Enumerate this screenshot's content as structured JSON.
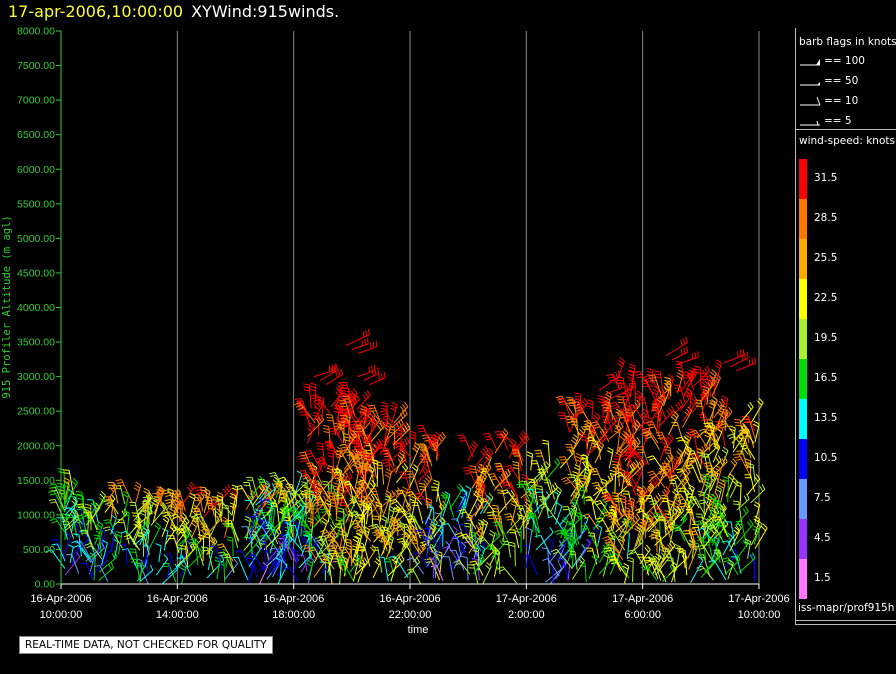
{
  "title": {
    "date": "17-apr-2006,10:00:00",
    "name": "XYWind:915winds."
  },
  "notice": "REAL-TIME DATA, NOT CHECKED FOR QUALITY",
  "legend": {
    "barb_title": "barb flags in knots",
    "barbs": [
      {
        "label": "== 100",
        "kind": "flag"
      },
      {
        "label": "== 50",
        "kind": "half-flag"
      },
      {
        "label": "== 10",
        "kind": "full-barb"
      },
      {
        "label": "== 5",
        "kind": "half-barb"
      }
    ],
    "speed_title": "wind-speed: knots",
    "source": "iss-mapr/prof915h"
  },
  "colors": {
    "axis": "#33cc33",
    "grid": "#888888",
    "scale": [
      {
        "label": "31.5",
        "color": "#ff0000"
      },
      {
        "label": "28.5",
        "color": "#ff7700"
      },
      {
        "label": "25.5",
        "color": "#ffaa00"
      },
      {
        "label": "22.5",
        "color": "#ffff00"
      },
      {
        "label": "19.5",
        "color": "#aaee33"
      },
      {
        "label": "16.5",
        "color": "#00dd00"
      },
      {
        "label": "13.5",
        "color": "#00ffff"
      },
      {
        "label": "10.5",
        "color": "#0000ff"
      },
      {
        "label": "7.5",
        "color": "#6699ff"
      },
      {
        "label": "4.5",
        "color": "#9933ff"
      },
      {
        "label": "1.5",
        "color": "#ff77ff"
      }
    ]
  },
  "chart_data": {
    "type": "scatter",
    "mark": "wind barbs",
    "xlabel": "time",
    "ylabel": "915 Profiler Altitude (m agl)",
    "ylim": [
      0,
      8000
    ],
    "xlim_hours": [
      0,
      24
    ],
    "yticks": [
      "0.00",
      "500.00",
      "1000.00",
      "1500.00",
      "2000.00",
      "2500.00",
      "3000.00",
      "3500.00",
      "4000.00",
      "4500.00",
      "5000.00",
      "5500.00",
      "6000.00",
      "6500.00",
      "7000.00",
      "7500.00",
      "8000.00"
    ],
    "xticks": [
      {
        "date": "16-Apr-2006",
        "time": "10:00:00"
      },
      {
        "date": "16-Apr-2006",
        "time": "14:00:00"
      },
      {
        "date": "16-Apr-2006",
        "time": "18:00:00"
      },
      {
        "date": "16-Apr-2006",
        "time": "22:00:00"
      },
      {
        "date": "17-Apr-2006",
        "time": "2:00:00"
      },
      {
        "date": "17-Apr-2006",
        "time": "6:00:00"
      },
      {
        "date": "17-Apr-2006",
        "time": "10:00:00"
      }
    ],
    "grid": true,
    "legend_position": "right",
    "profiles": [
      {
        "time_h": 0.5,
        "top_m": 1300,
        "speed_kt": 12
      },
      {
        "time_h": 2.0,
        "top_m": 1200,
        "speed_kt": 16
      },
      {
        "time_h": 3.5,
        "top_m": 1150,
        "speed_kt": 18
      },
      {
        "time_h": 5.0,
        "top_m": 1150,
        "speed_kt": 21
      },
      {
        "time_h": 6.5,
        "top_m": 1200,
        "speed_kt": 18
      },
      {
        "time_h": 7.5,
        "top_m": 1300,
        "speed_kt": 10
      },
      {
        "time_h": 8.5,
        "top_m": 1400,
        "speed_kt": 16
      },
      {
        "time_h": 9.5,
        "top_m": 2600,
        "speed_kt": 27
      },
      {
        "time_h": 10.5,
        "top_m": 2400,
        "speed_kt": 24
      },
      {
        "time_h": 12.0,
        "top_m": 2000,
        "speed_kt": 24
      },
      {
        "time_h": 13.5,
        "top_m": 1100,
        "speed_kt": 9
      },
      {
        "time_h": 15.0,
        "top_m": 2000,
        "speed_kt": 24
      },
      {
        "time_h": 17.0,
        "top_m": 1700,
        "speed_kt": 14
      },
      {
        "time_h": 18.5,
        "top_m": 2500,
        "speed_kt": 22
      },
      {
        "time_h": 20.0,
        "top_m": 2900,
        "speed_kt": 27
      },
      {
        "time_h": 21.5,
        "top_m": 2900,
        "speed_kt": 24
      },
      {
        "time_h": 23.0,
        "top_m": 2400,
        "speed_kt": 20
      }
    ],
    "upper_high_winds": [
      {
        "time_h": 8.7,
        "alt_m": 3000,
        "speed_kt": 32
      },
      {
        "time_h": 9.8,
        "alt_m": 3450,
        "speed_kt": 32
      },
      {
        "time_h": 10.2,
        "alt_m": 3000,
        "speed_kt": 32
      },
      {
        "time_h": 18.5,
        "alt_m": 2800,
        "speed_kt": 32
      },
      {
        "time_h": 20.8,
        "alt_m": 3300,
        "speed_kt": 32
      },
      {
        "time_h": 22.8,
        "alt_m": 3200,
        "speed_kt": 32
      }
    ]
  }
}
